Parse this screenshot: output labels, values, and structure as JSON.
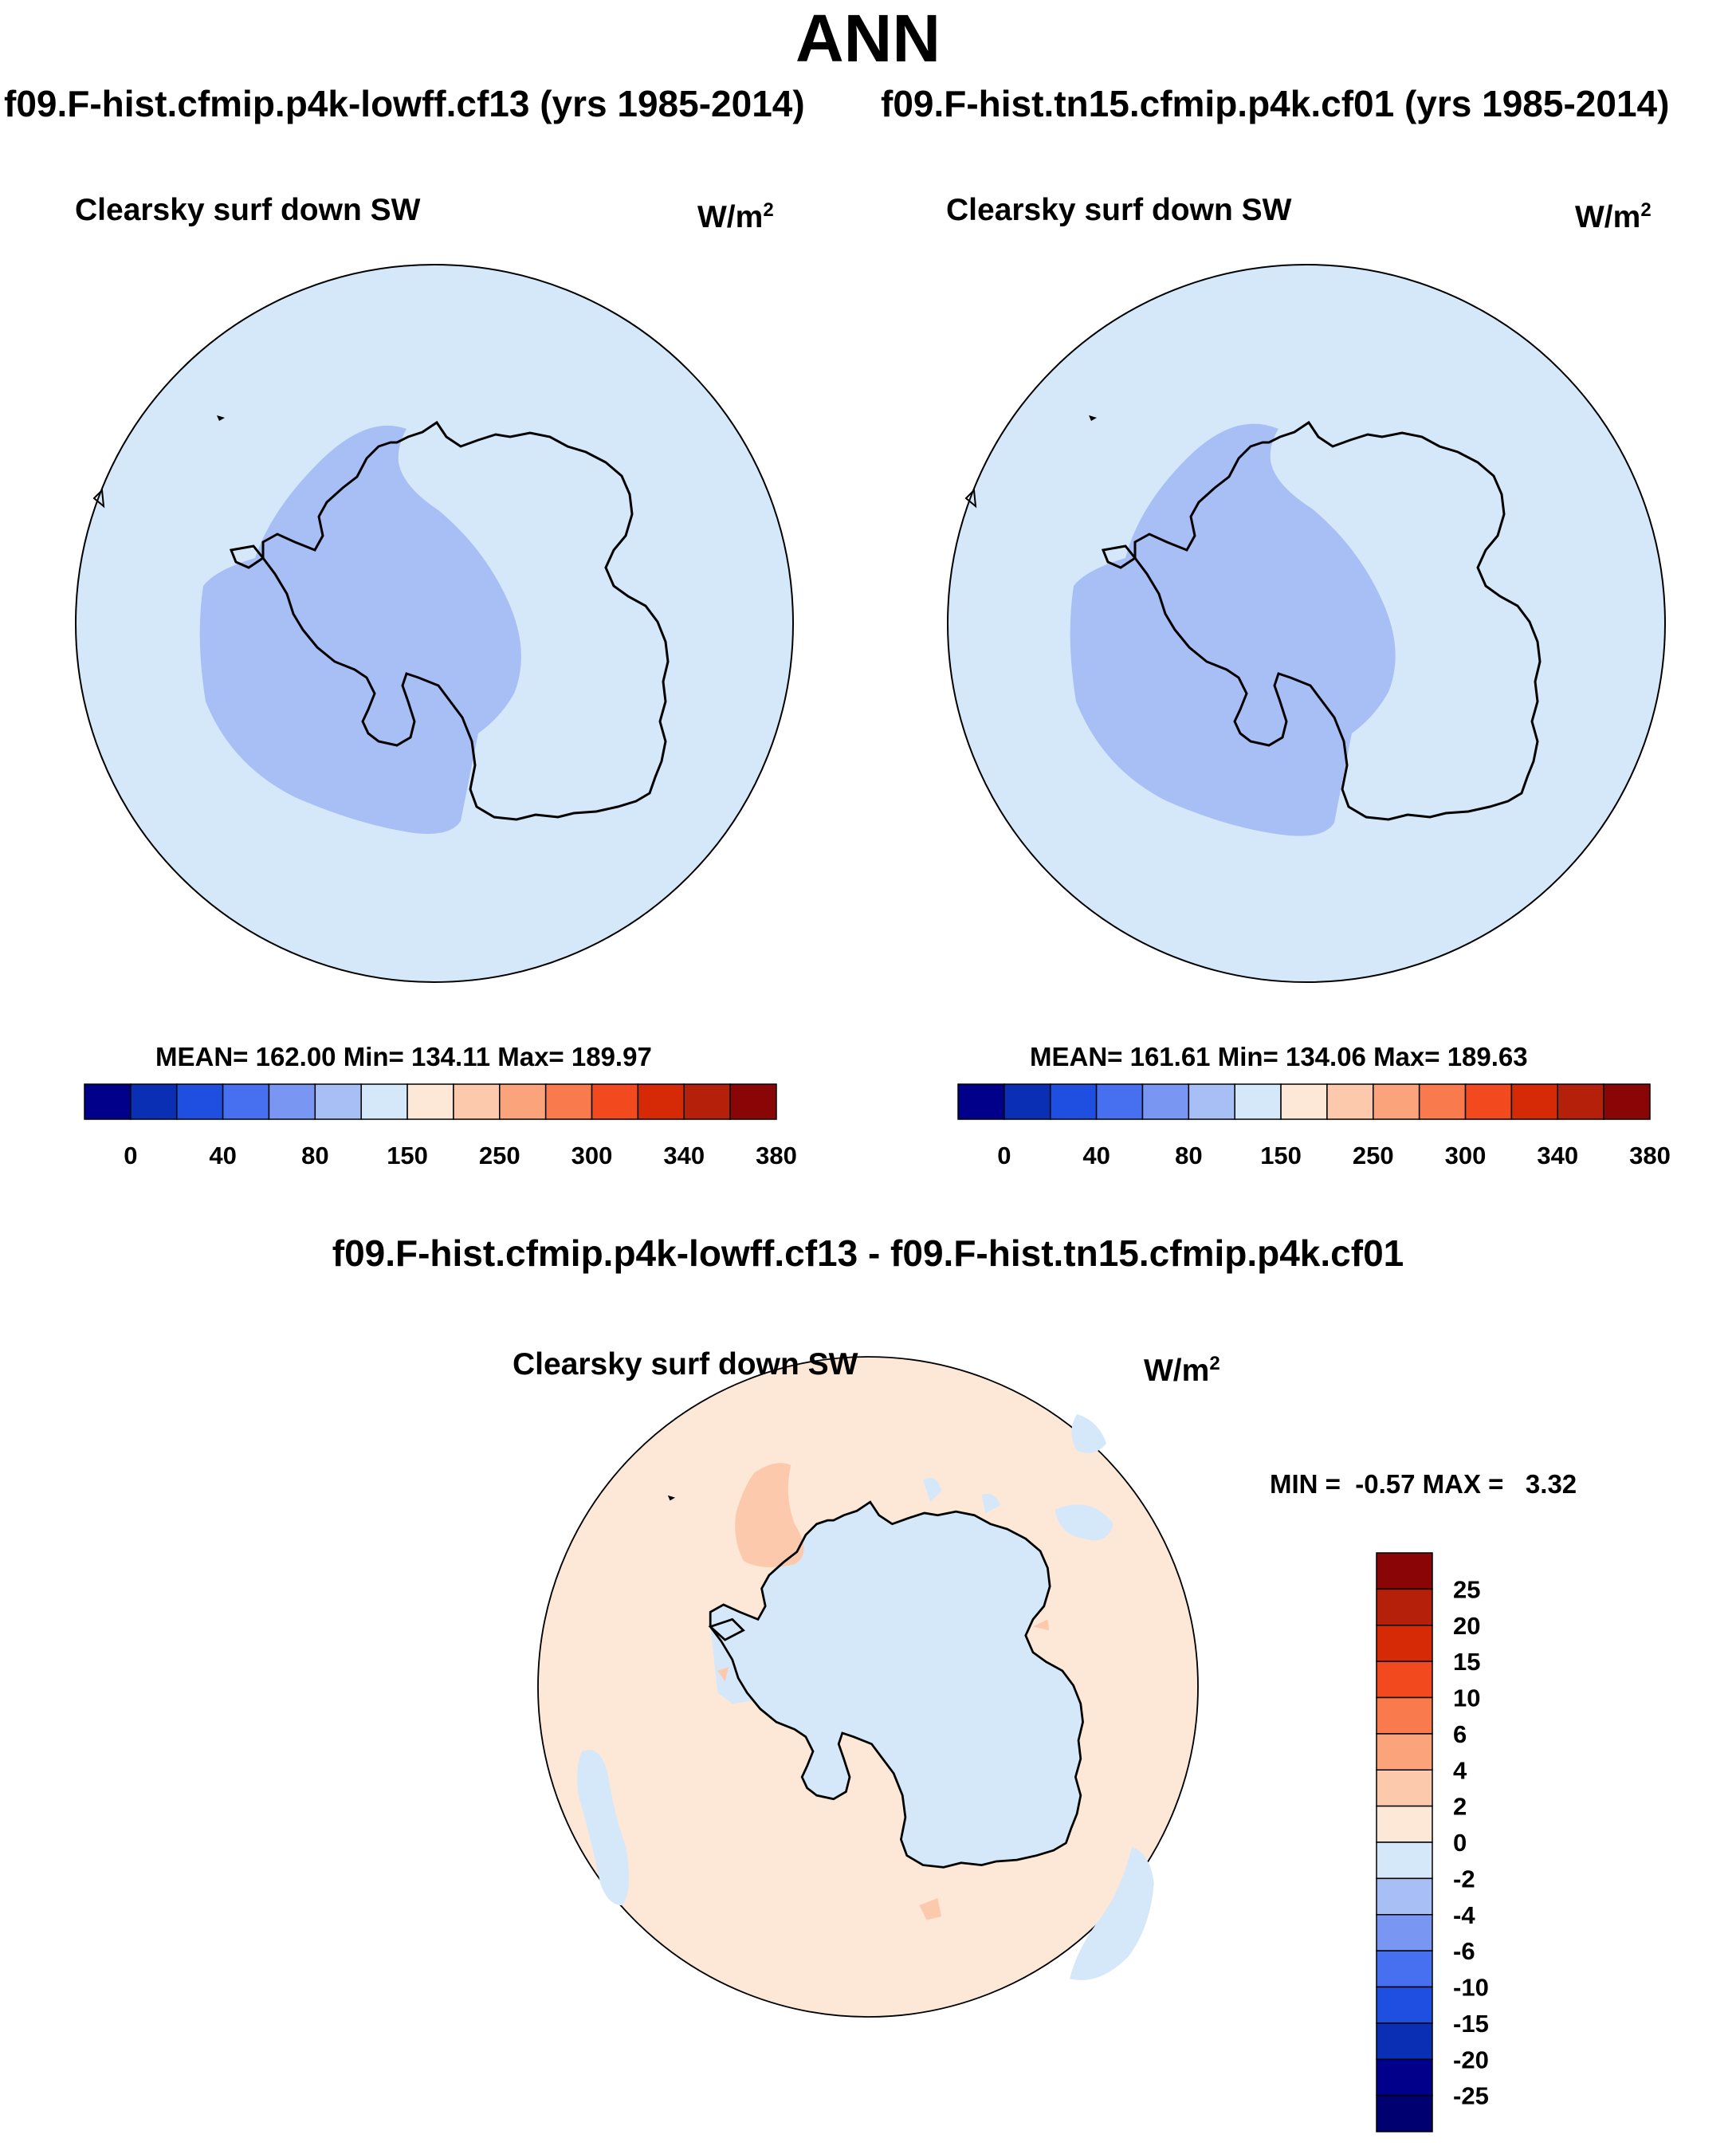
{
  "header": {
    "season": "ANN",
    "case1_title": "f09.F-hist.cfmip.p4k-lowff.cf13 (yrs 1985-2014)",
    "case2_title": "f09.F-hist.tn15.cfmip.p4k.cf01 (yrs 1985-2014)",
    "diff_title": "f09.F-hist.cfmip.p4k-lowff.cf13 - f09.F-hist.tn15.cfmip.p4k.cf01"
  },
  "panels": {
    "case1": {
      "variable": "Clearsky surf down SW",
      "units_base": "W/m",
      "units_exp": "2",
      "stats": "MEAN= 162.00  Min= 134.11  Max= 189.97",
      "mean": 162.0,
      "min": 134.11,
      "max": 189.97
    },
    "case2": {
      "variable": "Clearsky surf down SW",
      "units_base": "W/m",
      "units_exp": "2",
      "stats": "MEAN= 161.61  Min= 134.06  Max= 189.63",
      "mean": 161.61,
      "min": 134.06,
      "max": 189.63
    },
    "diff": {
      "variable": "Clearsky surf down SW",
      "units_base": "W/m",
      "units_exp": "2",
      "stats": "MIN =  -0.57 MAX =   3.32",
      "min": -0.57,
      "max": 3.32
    }
  },
  "colorbars": {
    "case_levels": [
      "0",
      "40",
      "80",
      "150",
      "250",
      "300",
      "340",
      "380"
    ],
    "case_colors": [
      "#00008a",
      "#0a2fb4",
      "#1f4fe0",
      "#4670f0",
      "#7896f2",
      "#a8bff5",
      "#d5e8fa",
      "#fde8d8",
      "#fcc9ac",
      "#fba47c",
      "#f97a4c",
      "#f24a1e",
      "#d62a07",
      "#b4200a",
      "#8a0606"
    ],
    "diff_levels": [
      "25",
      "20",
      "15",
      "10",
      "6",
      "4",
      "2",
      "0",
      "-2",
      "-4",
      "-6",
      "-10",
      "-15",
      "-20",
      "-25"
    ],
    "diff_colors": [
      "#8a0606",
      "#b4200a",
      "#d62a07",
      "#f24a1e",
      "#f97a4c",
      "#fba47c",
      "#fcc9ac",
      "#fde8d8",
      "#d5e8fa",
      "#a8bff5",
      "#7896f2",
      "#4670f0",
      "#1f4fe0",
      "#0a2fb4",
      "#00008a",
      "#000070"
    ]
  },
  "map_fills": {
    "ocean_case": "#d5e8fa",
    "lowband_case": "#a8bff5",
    "ocean_diff": "#fde8d8",
    "neg_diff": "#d5e8fa",
    "pos_diff": "#fcc9ac"
  }
}
